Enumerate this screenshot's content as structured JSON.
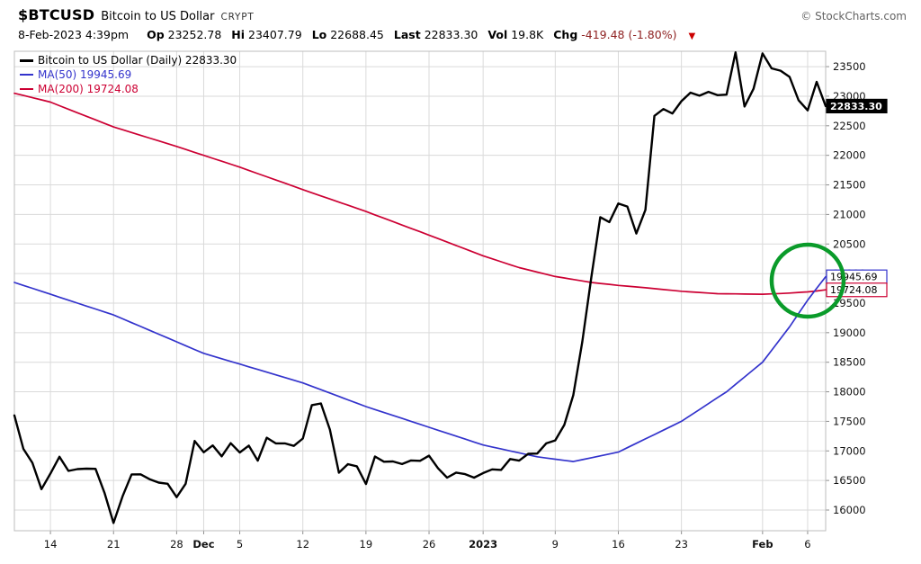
{
  "header": {
    "symbol": "$BTCUSD",
    "name": "Bitcoin to US Dollar",
    "exchange": "CRYPT",
    "source": "© StockCharts.com",
    "datetime": "8-Feb-2023 4:39pm",
    "quote": {
      "op_label": "Op",
      "op": "23252.78",
      "hi_label": "Hi",
      "hi": "23407.79",
      "lo_label": "Lo",
      "lo": "22688.45",
      "last_label": "Last",
      "last": "22833.30",
      "vol_label": "Vol",
      "vol": "19.8K",
      "chg_label": "Chg",
      "chg": "-419.48 (-1.80%)",
      "chg_arrow": "▼"
    }
  },
  "legend": {
    "items": [
      {
        "label": "Bitcoin to US Dollar (Daily) 22833.30",
        "color": "#000000"
      },
      {
        "label": "MA(50) 19945.69",
        "color": "#3333cc"
      },
      {
        "label": "MA(200) 19724.08",
        "color": "#cc0033"
      }
    ]
  },
  "chart_data": {
    "type": "line",
    "title": "Bitcoin to US Dollar (Daily)",
    "grid": true,
    "grid_color": "#dadada",
    "axis_color": "#8f8f8f",
    "border_color": "#bdbdbd",
    "legend_position": "top-left",
    "ylim": [
      15650,
      23760
    ],
    "y_ticks": [
      23500,
      23000,
      22500,
      22000,
      21500,
      21000,
      20500,
      20000,
      19500,
      19000,
      18500,
      18000,
      17500,
      17000,
      16500,
      16000
    ],
    "x_ticks": [
      {
        "i": 4,
        "label": "14",
        "bold": false
      },
      {
        "i": 11,
        "label": "21",
        "bold": false
      },
      {
        "i": 18,
        "label": "28",
        "bold": false
      },
      {
        "i": 21,
        "label": "Dec",
        "bold": true
      },
      {
        "i": 25,
        "label": "5",
        "bold": false
      },
      {
        "i": 32,
        "label": "12",
        "bold": false
      },
      {
        "i": 39,
        "label": "19",
        "bold": false
      },
      {
        "i": 46,
        "label": "26",
        "bold": false
      },
      {
        "i": 52,
        "label": "2023",
        "bold": true
      },
      {
        "i": 60,
        "label": "9",
        "bold": false
      },
      {
        "i": 67,
        "label": "16",
        "bold": false
      },
      {
        "i": 74,
        "label": "23",
        "bold": false
      },
      {
        "i": 83,
        "label": "Feb",
        "bold": true
      },
      {
        "i": 88,
        "label": "6",
        "bold": false
      }
    ],
    "n_points": 91,
    "series": [
      {
        "id": "price",
        "name": "Bitcoin to US Dollar (Daily)",
        "color": "#000000",
        "width": 2.4,
        "values": [
          17601,
          17034,
          16799,
          16353,
          16618,
          16900,
          16662,
          16692,
          16700,
          16697,
          16291,
          15781,
          16233,
          16603,
          16604,
          16522,
          16464,
          16444,
          16217,
          16444,
          17168,
          16977,
          17092,
          16908,
          17130,
          16974,
          17089,
          16836,
          17224,
          17128,
          17127,
          17085,
          17209,
          17774,
          17803,
          17360,
          16632,
          16776,
          16740,
          16439,
          16906,
          16817,
          16821,
          16778,
          16838,
          16832,
          16919,
          16706,
          16547,
          16633,
          16607,
          16547,
          16625,
          16688,
          16679,
          16863,
          16836,
          16951,
          16955,
          17127,
          17178,
          17440,
          17943,
          18846,
          19930,
          20954,
          20871,
          21185,
          21134,
          20677,
          21077,
          22667,
          22783,
          22707,
          22916,
          23060,
          23009,
          23074,
          23017,
          23027,
          23742,
          22826,
          23125,
          23723,
          23471,
          23431,
          23327,
          22930,
          22760,
          23243,
          22833.3
        ]
      },
      {
        "id": "ma50",
        "name": "MA(50)",
        "color": "#3333cc",
        "width": 1.7,
        "values": [
          19850,
          19800,
          19750,
          19700,
          19650,
          19600,
          19550,
          19500,
          19450,
          19400,
          19350,
          19300,
          19235,
          19170,
          19105,
          19040,
          18975,
          18910,
          18845,
          18780,
          18715,
          18650,
          18605,
          18560,
          18514,
          18469,
          18423,
          18378,
          18332,
          18287,
          18241,
          18196,
          18150,
          18093,
          18036,
          17979,
          17921,
          17864,
          17807,
          17750,
          17700,
          17650,
          17600,
          17550,
          17500,
          17450,
          17400,
          17350,
          17300,
          17250,
          17200,
          17150,
          17100,
          17067,
          17033,
          17000,
          16967,
          16933,
          16900,
          16880,
          16860,
          16840,
          16820,
          16852,
          16884,
          16916,
          16948,
          16980,
          17054,
          17129,
          17203,
          17277,
          17351,
          17426,
          17500,
          17600,
          17700,
          17800,
          17900,
          18000,
          18125,
          18250,
          18375,
          18500,
          18700,
          18900,
          19100,
          19325,
          19550,
          19750,
          19945.69
        ]
      },
      {
        "id": "ma200",
        "name": "MA(200)",
        "color": "#cc0033",
        "width": 1.7,
        "values": [
          23050,
          23013,
          22975,
          22938,
          22900,
          22840,
          22780,
          22720,
          22660,
          22600,
          22540,
          22480,
          22433,
          22386,
          22339,
          22291,
          22244,
          22197,
          22150,
          22100,
          22050,
          22000,
          21950,
          21900,
          21850,
          21800,
          21746,
          21691,
          21637,
          21583,
          21529,
          21474,
          21420,
          21367,
          21314,
          21261,
          21209,
          21156,
          21103,
          21050,
          20993,
          20936,
          20879,
          20821,
          20764,
          20707,
          20650,
          20592,
          20533,
          20475,
          20417,
          20358,
          20300,
          20250,
          20200,
          20150,
          20100,
          20063,
          20025,
          19988,
          19950,
          19925,
          19900,
          19875,
          19850,
          19833,
          19817,
          19800,
          19787,
          19773,
          19760,
          19745,
          19730,
          19715,
          19700,
          19690,
          19680,
          19670,
          19660,
          19658,
          19656,
          19654,
          19652,
          19650,
          19657,
          19663,
          19670,
          19680,
          19690,
          19705,
          19724.08
        ]
      }
    ],
    "price_labels": [
      {
        "text": "22833.30",
        "value": 22833.3,
        "bg": "#000000",
        "fg": "#ffffff",
        "border": "#000000",
        "bold": true
      },
      {
        "text": "19945.69",
        "value": 19945.69,
        "bg": "#ffffff",
        "fg": "#000000",
        "border": "#3333cc",
        "bold": false
      },
      {
        "text": "19724.08",
        "value": 19724.08,
        "bg": "#ffffff",
        "fg": "#000000",
        "border": "#cc0033",
        "bold": false
      }
    ],
    "annotation_circle": {
      "x_index": 88,
      "value": 19880,
      "radius": 40,
      "color": "#0a9b2a",
      "stroke_width": 4.5
    }
  }
}
